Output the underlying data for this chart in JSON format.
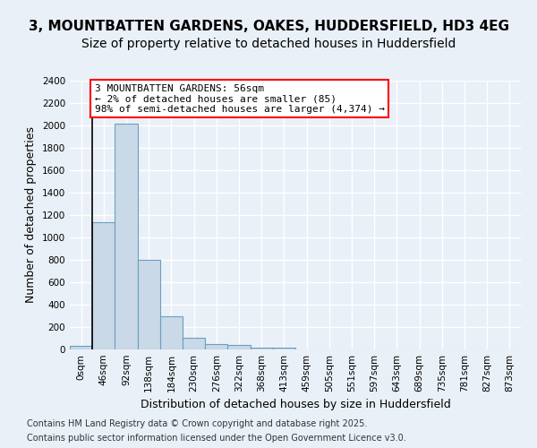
{
  "title_line1": "3, MOUNTBATTEN GARDENS, OAKES, HUDDERSFIELD, HD3 4EG",
  "title_line2": "Size of property relative to detached houses in Huddersfield",
  "xlabel": "Distribution of detached houses by size in Huddersfield",
  "ylabel": "Number of detached properties",
  "bin_labels": [
    "0sqm",
    "46sqm",
    "92sqm",
    "138sqm",
    "184sqm",
    "230sqm",
    "276sqm",
    "322sqm",
    "368sqm",
    "413sqm",
    "459sqm",
    "505sqm",
    "551sqm",
    "597sqm",
    "643sqm",
    "689sqm",
    "735sqm",
    "781sqm",
    "827sqm",
    "873sqm"
  ],
  "bar_values": [
    30,
    1140,
    2020,
    800,
    300,
    105,
    45,
    40,
    20,
    15,
    0,
    0,
    0,
    0,
    0,
    0,
    0,
    0,
    0,
    0
  ],
  "bar_color": "#c9d9e8",
  "bar_edge_color": "#6a9fc0",
  "annotation_text": "3 MOUNTBATTEN GARDENS: 56sqm\n← 2% of detached houses are smaller (85)\n98% of semi-detached houses are larger (4,374) →",
  "annotation_box_color": "white",
  "annotation_box_edge_color": "red",
  "vline_x": 0.5,
  "ylim": [
    0,
    2400
  ],
  "yticks": [
    0,
    200,
    400,
    600,
    800,
    1000,
    1200,
    1400,
    1600,
    1800,
    2000,
    2200,
    2400
  ],
  "background_color": "#eaf0f8",
  "plot_bg_color": "#eaf0f8",
  "grid_color": "#ffffff",
  "footer_line1": "Contains HM Land Registry data © Crown copyright and database right 2025.",
  "footer_line2": "Contains public sector information licensed under the Open Government Licence v3.0.",
  "title_fontsize": 11,
  "subtitle_fontsize": 10,
  "axis_label_fontsize": 9,
  "tick_fontsize": 7.5,
  "annotation_fontsize": 8,
  "footer_fontsize": 7
}
